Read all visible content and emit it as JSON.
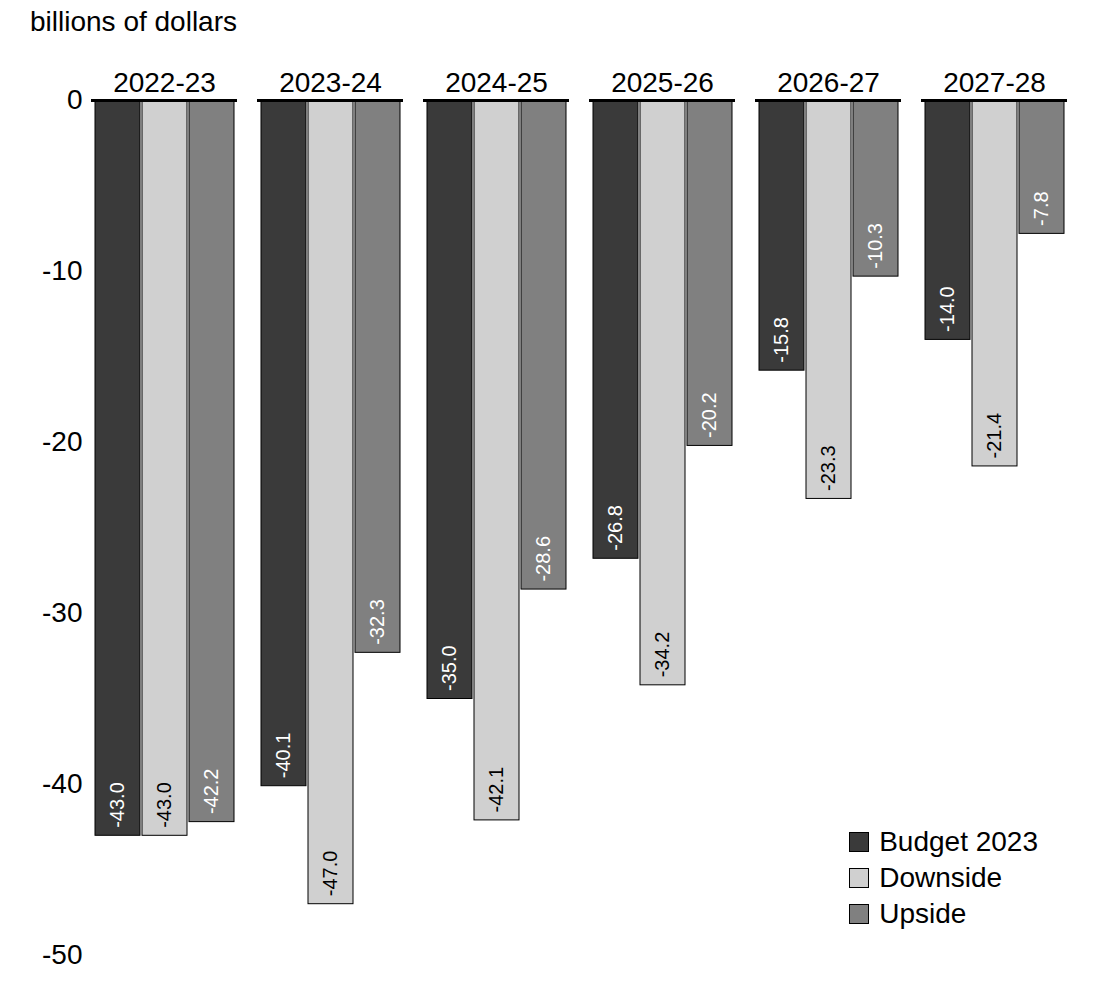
{
  "chart_data": {
    "type": "bar",
    "y_label": "billions of dollars",
    "categories": [
      "2022-23",
      "2023-24",
      "2024-25",
      "2025-26",
      "2026-27",
      "2027-28"
    ],
    "series": [
      {
        "name": "Budget 2023",
        "color": "#3a3a3a",
        "values": [
          -43.0,
          -40.1,
          -35.0,
          -26.8,
          -15.8,
          -14.0
        ],
        "value_labels": [
          "-43.0",
          "-40.1",
          "-35.0",
          "-26.8",
          "-15.8",
          "-14.0"
        ]
      },
      {
        "name": "Downside",
        "color": "#d0d0d0",
        "values": [
          -43.0,
          -47.0,
          -42.1,
          -34.2,
          -23.3,
          -21.4
        ],
        "value_labels": [
          "-43.0",
          "-47.0",
          "-42.1",
          "-34.2",
          "-23.3",
          "-21.4"
        ]
      },
      {
        "name": "Upside",
        "color": "#808080",
        "values": [
          -42.2,
          -32.3,
          -28.6,
          -20.2,
          -10.3,
          -7.8
        ],
        "value_labels": [
          "-42.2",
          "-32.3",
          "-28.6",
          "-20.2",
          "-10.3",
          "-7.8"
        ]
      }
    ],
    "ylim": [
      -50,
      0
    ],
    "yticks": [
      -50,
      -40,
      -30,
      -20,
      -10,
      0
    ],
    "grid": false,
    "legend": "bottom-right",
    "data_labels": true
  }
}
